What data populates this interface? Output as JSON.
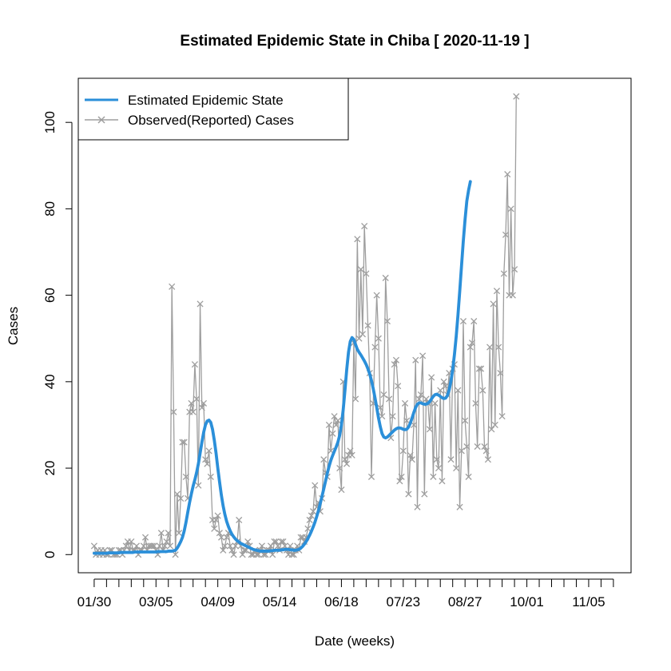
{
  "chart_data": {
    "type": "line",
    "title": "Estimated Epidemic State in Chiba [ 2020-11-19 ]",
    "xlabel": "Date (weeks)",
    "ylabel": "Cases",
    "x_start": "2020-01-30",
    "x_end": "2020-11-19",
    "xlim": [
      "2020-01-21",
      "2020-11-29"
    ],
    "ylim": [
      -4.2,
      110.2
    ],
    "x_tick_labels": [
      "01/30",
      "03/05",
      "04/09",
      "05/14",
      "06/18",
      "07/23",
      "08/27",
      "10/01",
      "11/05"
    ],
    "x_tick_dates": [
      "2020-01-30",
      "2020-03-05",
      "2020-04-09",
      "2020-05-14",
      "2020-06-18",
      "2020-07-23",
      "2020-08-27",
      "2020-10-01",
      "2020-11-05"
    ],
    "x_minor_tick_dates": [
      "2020-02-06",
      "2020-02-13",
      "2020-02-20",
      "2020-02-27",
      "2020-03-12",
      "2020-03-19",
      "2020-03-26",
      "2020-04-02",
      "2020-04-16",
      "2020-04-23",
      "2020-04-30",
      "2020-05-07",
      "2020-05-21",
      "2020-05-28",
      "2020-06-04",
      "2020-06-11",
      "2020-06-25",
      "2020-07-02",
      "2020-07-09",
      "2020-07-16",
      "2020-07-30",
      "2020-08-06",
      "2020-08-13",
      "2020-08-20",
      "2020-09-03",
      "2020-09-10",
      "2020-09-17",
      "2020-09-24",
      "2020-10-08",
      "2020-10-15",
      "2020-10-22",
      "2020-10-29",
      "2020-11-12",
      "2020-11-19"
    ],
    "y_ticks": [
      0,
      20,
      40,
      60,
      80,
      100
    ],
    "grid": false,
    "legend_position": "top-left",
    "series": [
      {
        "name": "Estimated Epidemic State",
        "color": "#2B8FD9",
        "style": "smooth line",
        "values": [
          0.3,
          0.3,
          0.3,
          0.3,
          0.3,
          0.3,
          0.3,
          0.3,
          0.4,
          0.4,
          0.4,
          0.4,
          0.4,
          0.4,
          0.4,
          0.5,
          0.5,
          0.5,
          0.5,
          0.5,
          0.5,
          0.5,
          0.5,
          0.6,
          0.6,
          0.6,
          0.6,
          0.6,
          0.6,
          0.6,
          0.6,
          0.6,
          0.6,
          0.6,
          0.6,
          0.6,
          0.7,
          0.7,
          0.7,
          0.7,
          0.7,
          0.7,
          0.8,
          0.8,
          0.8,
          0.9,
          1.0,
          1.5,
          2.2,
          3.0,
          4.0,
          5.5,
          7.5,
          9.8,
          12.0,
          14.0,
          15.8,
          17.3,
          19.0,
          21.0,
          23.5,
          26.0,
          28.3,
          30.0,
          30.9,
          31.1,
          30.6,
          29.0,
          26.5,
          23.5,
          20.0,
          16.8,
          13.8,
          11.3,
          9.3,
          7.7,
          6.5,
          5.5,
          4.7,
          4.1,
          3.6,
          3.2,
          2.9,
          2.6,
          2.4,
          2.2,
          2.0,
          1.8,
          1.6,
          1.4,
          1.2,
          1.1,
          1.0,
          0.9,
          0.8,
          0.8,
          0.8,
          0.8,
          0.8,
          0.8,
          0.9,
          0.9,
          1.0,
          1.0,
          1.0,
          1.0,
          1.1,
          1.1,
          1.2,
          1.2,
          1.2,
          1.1,
          1.1,
          1.0,
          1.0,
          1.1,
          1.2,
          1.5,
          1.9,
          2.4,
          3.0,
          3.7,
          4.5,
          5.4,
          6.4,
          7.5,
          8.8,
          10.2,
          11.8,
          13.5,
          15.2,
          17.0,
          18.8,
          20.4,
          21.8,
          22.9,
          23.9,
          24.9,
          26.0,
          27.6,
          30.0,
          33.5,
          38.0,
          42.8,
          46.8,
          49.3,
          50.2,
          49.8,
          48.6,
          47.5,
          46.8,
          46.2,
          45.5,
          44.8,
          44.0,
          43.0,
          41.8,
          40.3,
          38.4,
          36.3,
          34.0,
          31.6,
          29.6,
          28.0,
          27.2,
          27.0,
          27.2,
          27.6,
          28.0,
          28.4,
          28.8,
          29.1,
          29.3,
          29.3,
          29.2,
          29.0,
          28.9,
          29.0,
          29.5,
          30.4,
          31.6,
          32.9,
          34.0,
          34.8,
          35.1,
          35.1,
          34.9,
          34.8,
          34.8,
          35.0,
          35.4,
          36.0,
          36.6,
          37.0,
          37.1,
          36.9,
          36.6,
          36.3,
          36.1,
          36.2,
          36.8,
          38.1,
          40.1,
          42.8,
          46.3,
          50.5,
          55.5,
          61.0,
          66.8,
          72.5,
          77.5,
          81.8,
          84.3,
          86.3
        ]
      },
      {
        "name": "Observed(Reported) Cases",
        "color": "#9E9E9E",
        "style": "line with x markers",
        "values": [
          2,
          0,
          1,
          0,
          1,
          0,
          1,
          0,
          0,
          1,
          1,
          0,
          0,
          0,
          1,
          1,
          0,
          1,
          2,
          3,
          1,
          3,
          1,
          1,
          2,
          0,
          1,
          1,
          2,
          4,
          1,
          2,
          2,
          2,
          2,
          1,
          0,
          2,
          5,
          1,
          2,
          3,
          5,
          2,
          62,
          33,
          0,
          14,
          5,
          13,
          26,
          26,
          18,
          13,
          33,
          35,
          33,
          44,
          36,
          16,
          58,
          34,
          35,
          22,
          21,
          24,
          18,
          8,
          6,
          8,
          9,
          5,
          4,
          1,
          2,
          4,
          5,
          2,
          1,
          0,
          2,
          3,
          8,
          2,
          0,
          1,
          1,
          3,
          2,
          0,
          0,
          1,
          0,
          0,
          1,
          2,
          0,
          0,
          1,
          1,
          2,
          0,
          3,
          3,
          2,
          1,
          3,
          3,
          2,
          1,
          0,
          2,
          0,
          0,
          1,
          2,
          1,
          4,
          4,
          3,
          4,
          6,
          8,
          9,
          10,
          16,
          11,
          12,
          10,
          13,
          22,
          19,
          18,
          30,
          24,
          28,
          32,
          30,
          31,
          20,
          15,
          40,
          22,
          21,
          23,
          24,
          23,
          49,
          36,
          73,
          50,
          66,
          51,
          76,
          65,
          53,
          42,
          18,
          35,
          48,
          60,
          50,
          34,
          32,
          37,
          64,
          54,
          36,
          27,
          32,
          44,
          45,
          39,
          17,
          18,
          24,
          35,
          31,
          14,
          23,
          22,
          30,
          45,
          11,
          36,
          37,
          46,
          14,
          36,
          35,
          29,
          41,
          18,
          35,
          22,
          20,
          38,
          17,
          40,
          39,
          37,
          42,
          22,
          43,
          44,
          20,
          38,
          11,
          24,
          54,
          31,
          25,
          18,
          48,
          49,
          54,
          35,
          25,
          43,
          43,
          38,
          25,
          24,
          22,
          48,
          29,
          58,
          30,
          61,
          48,
          42,
          32,
          65,
          74,
          88,
          60,
          80,
          60,
          66,
          106
        ]
      }
    ]
  }
}
